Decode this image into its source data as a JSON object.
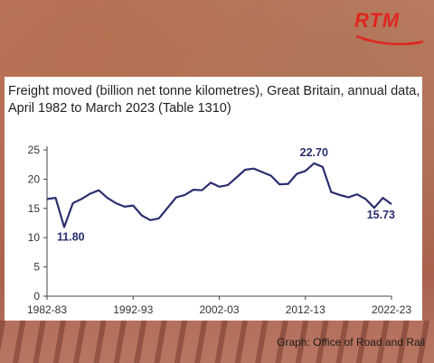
{
  "logo": {
    "text": "RTM",
    "color": "#e0261e"
  },
  "caption": "Graph: Office of Road and Rail",
  "chart_data": {
    "type": "line",
    "title": "Freight moved (billion net tonne kilometres), Great Britain, annual data, April 1982 to March 2023 (Table 1310)",
    "xlabel": "",
    "ylabel": "",
    "x_tick_labels": [
      "1982-83",
      "1992-93",
      "2002-03",
      "2012-13",
      "2022-23"
    ],
    "y_ticks": [
      0,
      5,
      10,
      15,
      20,
      25
    ],
    "ylim": [
      0,
      25
    ],
    "line_color": "#2b2f6e",
    "grid": false,
    "series": [
      {
        "x": [
          "1982-83",
          "1983-84",
          "1984-85",
          "1985-86",
          "1986-87",
          "1987-88",
          "1988-89",
          "1989-90",
          "1990-91",
          "1991-92",
          "1992-93",
          "1993-94",
          "1994-95",
          "1995-96",
          "1996-97",
          "1997-98",
          "1998-99",
          "1999-00",
          "2000-01",
          "2001-02",
          "2002-03",
          "2003-04",
          "2004-05",
          "2005-06",
          "2006-07",
          "2007-08",
          "2008-09",
          "2009-10",
          "2010-11",
          "2011-12",
          "2012-13",
          "2013-14",
          "2014-15",
          "2015-16",
          "2016-17",
          "2017-18",
          "2018-19",
          "2019-20",
          "2020-21",
          "2021-22",
          "2022-23"
        ],
        "values": [
          16.6,
          16.8,
          11.8,
          15.9,
          16.6,
          17.5,
          18.1,
          16.8,
          15.9,
          15.3,
          15.5,
          13.8,
          13.0,
          13.3,
          15.1,
          16.9,
          17.3,
          18.2,
          18.1,
          19.4,
          18.7,
          19.0,
          20.3,
          21.6,
          21.8,
          21.2,
          20.6,
          19.1,
          19.2,
          20.9,
          21.4,
          22.7,
          22.1,
          17.8,
          17.3,
          16.9,
          17.4,
          16.6,
          15.1,
          16.8,
          15.73
        ]
      }
    ],
    "annotations": [
      {
        "label": "22.70",
        "index": 31
      },
      {
        "label": "11.80",
        "index": 2
      },
      {
        "label": "15.73",
        "index": 40
      }
    ]
  }
}
